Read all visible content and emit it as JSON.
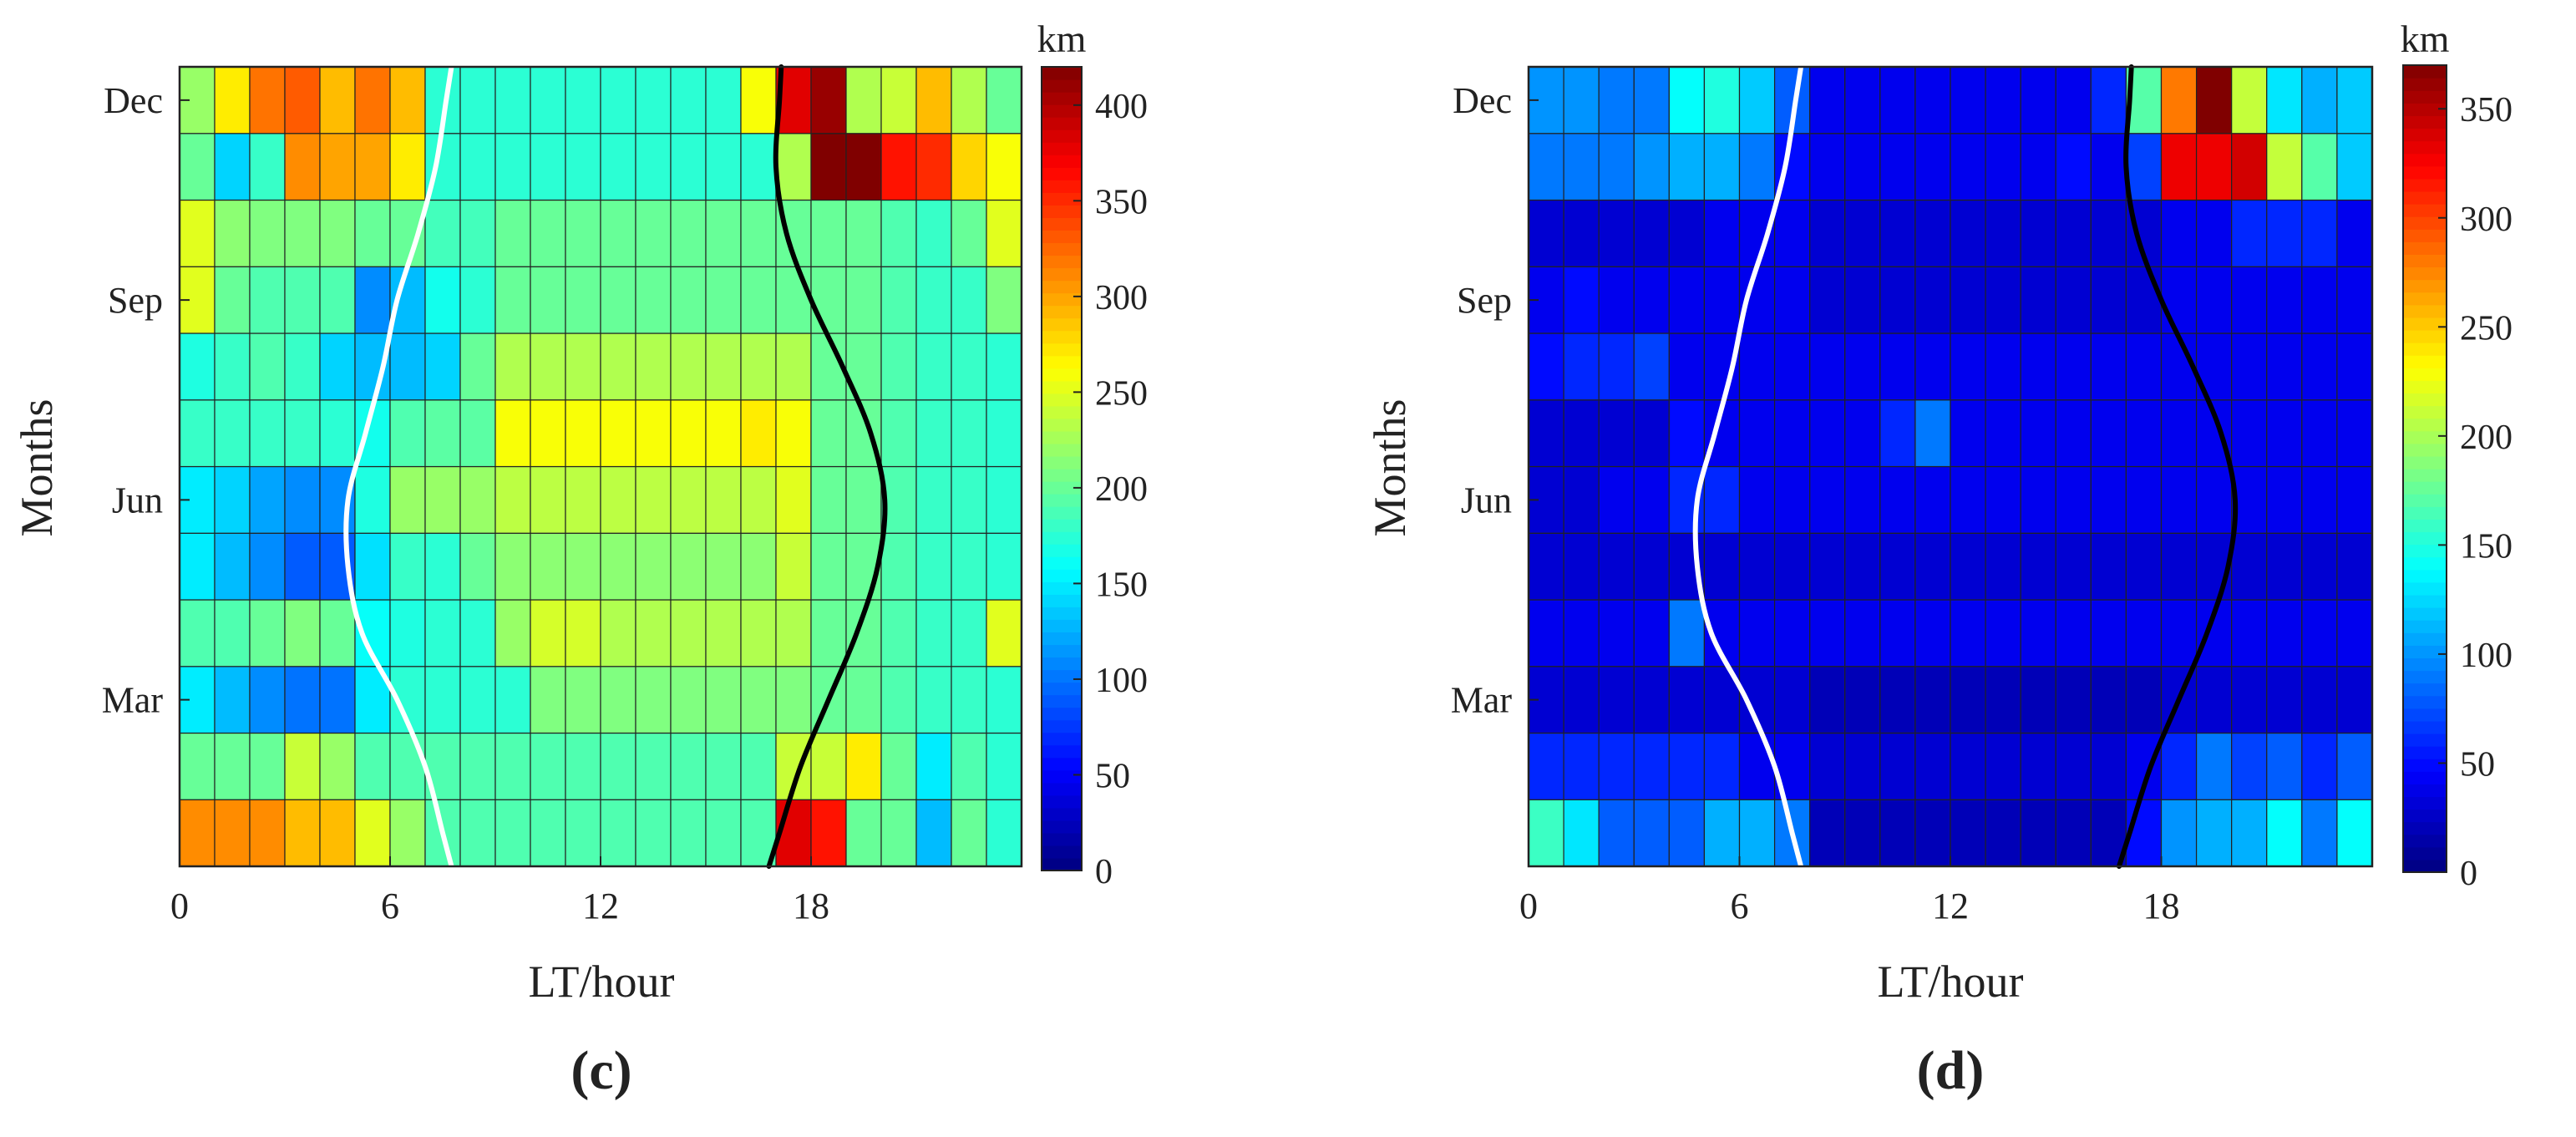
{
  "chart_data": [
    {
      "type": "heatmap",
      "panel_label": "(c)",
      "xlabel": "LT/hour",
      "ylabel": "Months",
      "xlim": [
        0,
        24
      ],
      "ylim": [
        0.5,
        12.5
      ],
      "x_ticks": [
        0,
        6,
        12,
        18
      ],
      "x_tick_labels": [
        "0",
        "6",
        "12",
        "18"
      ],
      "y_ticks": [
        3,
        6,
        9,
        12
      ],
      "y_tick_labels": [
        "Mar",
        "Jun",
        "Sep",
        "Dec"
      ],
      "colorbar": {
        "unit": "km",
        "min": 0,
        "max": 420,
        "ticks": [
          0,
          50,
          100,
          150,
          200,
          250,
          300,
          350,
          400
        ],
        "tick_labels": [
          "0",
          "50",
          "100",
          "150",
          "200",
          "250",
          "300",
          "350",
          "400"
        ],
        "colormap": "jet"
      },
      "rows_month_order": "Jan..Dec (bottom to top)",
      "values": [
        [
          310,
          310,
          310,
          290,
          290,
          250,
          220,
          190,
          190,
          190,
          190,
          190,
          190,
          190,
          190,
          190,
          190,
          380,
          360,
          200,
          200,
          130,
          200,
          175
        ],
        [
          200,
          200,
          200,
          240,
          220,
          190,
          190,
          190,
          190,
          190,
          190,
          190,
          190,
          190,
          190,
          190,
          190,
          240,
          240,
          270,
          200,
          150,
          190,
          175
        ],
        [
          150,
          130,
          110,
          100,
          100,
          150,
          175,
          175,
          175,
          175,
          210,
          210,
          210,
          210,
          210,
          210,
          210,
          210,
          200,
          200,
          190,
          180,
          180,
          175
        ],
        [
          190,
          190,
          200,
          210,
          200,
          160,
          170,
          175,
          175,
          220,
          245,
          245,
          230,
          230,
          230,
          230,
          230,
          230,
          200,
          200,
          190,
          180,
          180,
          250
        ],
        [
          150,
          130,
          110,
          90,
          90,
          145,
          180,
          175,
          200,
          215,
          215,
          215,
          215,
          215,
          215,
          215,
          215,
          240,
          200,
          200,
          190,
          180,
          180,
          175
        ],
        [
          150,
          140,
          120,
          110,
          110,
          170,
          220,
          220,
          220,
          235,
          235,
          235,
          235,
          235,
          235,
          235,
          235,
          250,
          200,
          200,
          190,
          180,
          180,
          175
        ],
        [
          180,
          180,
          180,
          180,
          175,
          165,
          190,
          195,
          195,
          260,
          260,
          260,
          260,
          260,
          260,
          260,
          270,
          260,
          200,
          200,
          190,
          180,
          180,
          175
        ],
        [
          170,
          180,
          190,
          180,
          140,
          130,
          130,
          140,
          200,
          230,
          230,
          230,
          230,
          230,
          230,
          230,
          230,
          230,
          200,
          200,
          190,
          180,
          180,
          175
        ],
        [
          250,
          200,
          190,
          190,
          190,
          110,
          130,
          165,
          175,
          200,
          200,
          200,
          200,
          200,
          200,
          200,
          200,
          200,
          200,
          200,
          190,
          180,
          180,
          210
        ],
        [
          250,
          215,
          210,
          210,
          210,
          200,
          200,
          185,
          185,
          200,
          200,
          200,
          200,
          200,
          200,
          200,
          200,
          200,
          200,
          200,
          190,
          180,
          200,
          250
        ],
        [
          200,
          140,
          180,
          310,
          300,
          300,
          270,
          175,
          175,
          175,
          175,
          175,
          175,
          175,
          175,
          175,
          175,
          230,
          420,
          420,
          360,
          350,
          280,
          260
        ],
        [
          220,
          270,
          320,
          330,
          290,
          320,
          290,
          175,
          175,
          175,
          175,
          175,
          175,
          175,
          175,
          175,
          260,
          380,
          410,
          230,
          240,
          290,
          230,
          200
        ]
      ],
      "sunrise_line": {
        "color": "#ffffff",
        "lt_by_month": [
          7.5,
          7.0,
          6.2,
          5.2,
          4.8,
          4.8,
          5.3,
          5.8,
          6.2,
          6.8,
          7.3,
          7.6
        ]
      },
      "sunset_line": {
        "color": "#000000",
        "lt_by_month": [
          17.1,
          17.7,
          18.5,
          19.3,
          19.9,
          20.1,
          19.7,
          18.9,
          18.0,
          17.3,
          17.0,
          17.1
        ]
      }
    },
    {
      "type": "heatmap",
      "panel_label": "(d)",
      "xlabel": "LT/hour",
      "ylabel": "Months",
      "xlim": [
        0,
        24
      ],
      "ylim": [
        0.5,
        12.5
      ],
      "x_ticks": [
        0,
        6,
        12,
        18
      ],
      "x_tick_labels": [
        "0",
        "6",
        "12",
        "18"
      ],
      "y_ticks": [
        3,
        6,
        9,
        12
      ],
      "y_tick_labels": [
        "Mar",
        "Jun",
        "Sep",
        "Dec"
      ],
      "colorbar": {
        "unit": "km",
        "min": 0,
        "max": 370,
        "ticks": [
          0,
          50,
          100,
          150,
          200,
          250,
          300,
          350
        ],
        "tick_labels": [
          "0",
          "50",
          "100",
          "150",
          "200",
          "250",
          "300",
          "350"
        ],
        "colormap": "jet"
      },
      "rows_month_order": "Jan..Dec (bottom to top)",
      "values": [
        [
          160,
          130,
          80,
          80,
          80,
          110,
          110,
          90,
          20,
          20,
          20,
          20,
          20,
          20,
          20,
          20,
          20,
          50,
          100,
          110,
          110,
          140,
          90,
          140
        ],
        [
          60,
          60,
          60,
          60,
          60,
          60,
          40,
          40,
          30,
          30,
          30,
          30,
          30,
          30,
          30,
          30,
          30,
          40,
          60,
          90,
          70,
          80,
          60,
          80
        ],
        [
          30,
          30,
          30,
          30,
          30,
          30,
          30,
          30,
          20,
          20,
          20,
          20,
          20,
          20,
          20,
          20,
          20,
          20,
          30,
          30,
          30,
          30,
          30,
          30
        ],
        [
          40,
          40,
          40,
          40,
          90,
          40,
          40,
          40,
          40,
          40,
          40,
          40,
          40,
          40,
          40,
          40,
          40,
          40,
          40,
          40,
          40,
          40,
          40,
          40
        ],
        [
          30,
          30,
          30,
          30,
          30,
          30,
          30,
          30,
          30,
          30,
          30,
          30,
          30,
          30,
          30,
          30,
          30,
          30,
          30,
          30,
          30,
          30,
          30,
          30
        ],
        [
          30,
          30,
          40,
          40,
          60,
          60,
          40,
          40,
          40,
          40,
          40,
          40,
          40,
          40,
          40,
          40,
          40,
          40,
          40,
          40,
          40,
          40,
          40,
          40
        ],
        [
          30,
          30,
          30,
          30,
          50,
          40,
          40,
          40,
          40,
          40,
          60,
          90,
          40,
          40,
          40,
          40,
          40,
          40,
          40,
          40,
          40,
          40,
          40,
          40
        ],
        [
          50,
          60,
          60,
          70,
          40,
          40,
          40,
          40,
          40,
          40,
          40,
          40,
          40,
          40,
          40,
          40,
          40,
          40,
          40,
          40,
          40,
          40,
          40,
          40
        ],
        [
          40,
          50,
          40,
          40,
          40,
          40,
          40,
          40,
          30,
          30,
          30,
          30,
          30,
          30,
          30,
          30,
          30,
          30,
          40,
          40,
          40,
          40,
          40,
          40
        ],
        [
          30,
          30,
          30,
          30,
          30,
          40,
          40,
          40,
          30,
          30,
          30,
          30,
          30,
          30,
          30,
          30,
          30,
          30,
          40,
          40,
          60,
          60,
          60,
          40
        ],
        [
          90,
          90,
          90,
          100,
          110,
          110,
          90,
          50,
          40,
          40,
          40,
          40,
          40,
          40,
          40,
          50,
          40,
          70,
          330,
          330,
          340,
          210,
          170,
          120
        ],
        [
          100,
          100,
          90,
          90,
          140,
          150,
          120,
          80,
          40,
          40,
          40,
          40,
          40,
          40,
          40,
          40,
          60,
          170,
          280,
          370,
          210,
          130,
          110,
          120
        ]
      ],
      "sunrise_line": {
        "color": "#ffffff",
        "lt_by_month": [
          7.5,
          7.0,
          6.2,
          5.2,
          4.8,
          4.8,
          5.3,
          5.8,
          6.2,
          6.8,
          7.3,
          7.6
        ]
      },
      "sunset_line": {
        "color": "#000000",
        "lt_by_month": [
          17.1,
          17.7,
          18.5,
          19.3,
          19.9,
          20.1,
          19.7,
          18.9,
          18.0,
          17.3,
          17.0,
          17.1
        ]
      }
    }
  ]
}
